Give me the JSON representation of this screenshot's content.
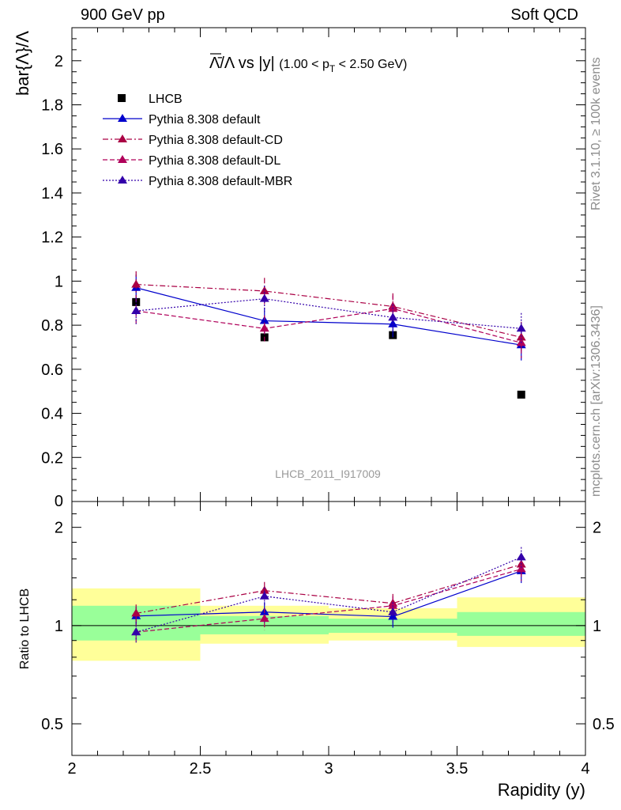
{
  "header": {
    "left": "900 GeV pp",
    "right": "Soft QCD"
  },
  "side_text": {
    "rivet": "Rivet 3.1.10, ≥ 100k events",
    "mcplots": "mcplots.cern.ch [arXiv:1306.3436]"
  },
  "colors": {
    "lhcb": "#000000",
    "default": "#0000cc",
    "default_cd": "#aa0044",
    "default_dl": "#b0005a",
    "default_mbr": "#3300aa",
    "band_inner": "#99ff99",
    "band_outer": "#ffff99"
  },
  "chart_data": [
    {
      "type": "scatter",
      "title": "Λ̄/Λ vs |y|",
      "title_suffix": "(1.00 < p",
      "title_sub": "T",
      "title_end": " < 2.50 GeV)",
      "ylabel": "bar{Λ}/Λ",
      "watermark": "LHCB_2011_I917009",
      "xlim": [
        2,
        4
      ],
      "ylim": [
        0,
        2.15
      ],
      "y_ticks": [
        0.2,
        0.4,
        0.6,
        0.8,
        1,
        1.2,
        1.4,
        1.6,
        1.8,
        2
      ],
      "y_tick_labels": [
        "0.2",
        "0.4",
        "0.6",
        "0.8",
        "1",
        "1.2",
        "1.4",
        "1.6",
        "1.8",
        "2"
      ],
      "bottom_tick_label": "0",
      "x": [
        2.25,
        2.75,
        3.25,
        3.75
      ],
      "series": [
        {
          "name": "LHCB",
          "style": "data",
          "values": [
            0.905,
            0.745,
            0.755,
            0.485
          ]
        },
        {
          "name": "Pythia 8.308 default",
          "style": "solid",
          "values": [
            0.97,
            0.82,
            0.805,
            0.71
          ],
          "err": [
            0.06,
            0.06,
            0.06,
            0.07
          ]
        },
        {
          "name": "Pythia 8.308 default-CD",
          "style": "dashdot",
          "values": [
            0.985,
            0.955,
            0.885,
            0.745
          ],
          "err": [
            0.06,
            0.06,
            0.06,
            0.07
          ]
        },
        {
          "name": "Pythia 8.308 default-DL",
          "style": "dashed",
          "values": [
            0.865,
            0.785,
            0.875,
            0.72
          ],
          "err": [
            0.06,
            0.06,
            0.06,
            0.07
          ]
        },
        {
          "name": "Pythia 8.308 default-MBR",
          "style": "dotted",
          "values": [
            0.865,
            0.92,
            0.835,
            0.785
          ],
          "err": [
            0.06,
            0.06,
            0.06,
            0.07
          ]
        }
      ]
    },
    {
      "type": "scatter",
      "ylabel": "Ratio to LHCB",
      "xlabel": "Rapidity (y)",
      "xlim": [
        2,
        4
      ],
      "ylim": [
        0.4,
        2.4
      ],
      "log_y": true,
      "y_ticks": [
        0.5,
        1,
        2
      ],
      "y_tick_labels": [
        "0.5",
        "1",
        "2"
      ],
      "x_ticks": [
        2,
        2.5,
        3,
        3.5,
        4
      ],
      "x_tick_labels": [
        "2",
        "2.5",
        "3",
        "3.5",
        "4"
      ],
      "x": [
        2.25,
        2.75,
        3.25,
        3.75
      ],
      "bands": [
        {
          "x": [
            2.0,
            2.5
          ],
          "inner": [
            0.9,
            1.15
          ],
          "outer": [
            0.78,
            1.3
          ]
        },
        {
          "x": [
            2.5,
            3.0
          ],
          "inner": [
            0.94,
            1.07
          ],
          "outer": [
            0.88,
            1.15
          ]
        },
        {
          "x": [
            3.0,
            3.5
          ],
          "inner": [
            0.95,
            1.05
          ],
          "outer": [
            0.9,
            1.13
          ]
        },
        {
          "x": [
            3.5,
            4.0
          ],
          "inner": [
            0.93,
            1.1
          ],
          "outer": [
            0.86,
            1.22
          ]
        }
      ],
      "series": [
        {
          "name": "Pythia 8.308 default",
          "style": "solid",
          "values": [
            1.07,
            1.1,
            1.065,
            1.47
          ],
          "err": [
            0.07,
            0.08,
            0.08,
            0.12
          ]
        },
        {
          "name": "Pythia 8.308 default-CD",
          "style": "dashdot",
          "values": [
            1.09,
            1.28,
            1.17,
            1.54
          ],
          "err": [
            0.07,
            0.08,
            0.08,
            0.12
          ]
        },
        {
          "name": "Pythia 8.308 default-DL",
          "style": "dashed",
          "values": [
            0.955,
            1.05,
            1.15,
            1.49
          ],
          "err": [
            0.07,
            0.08,
            0.08,
            0.12
          ]
        },
        {
          "name": "Pythia 8.308 default-MBR",
          "style": "dotted",
          "values": [
            0.955,
            1.23,
            1.1,
            1.62
          ],
          "err": [
            0.07,
            0.08,
            0.08,
            0.12
          ]
        }
      ]
    }
  ]
}
